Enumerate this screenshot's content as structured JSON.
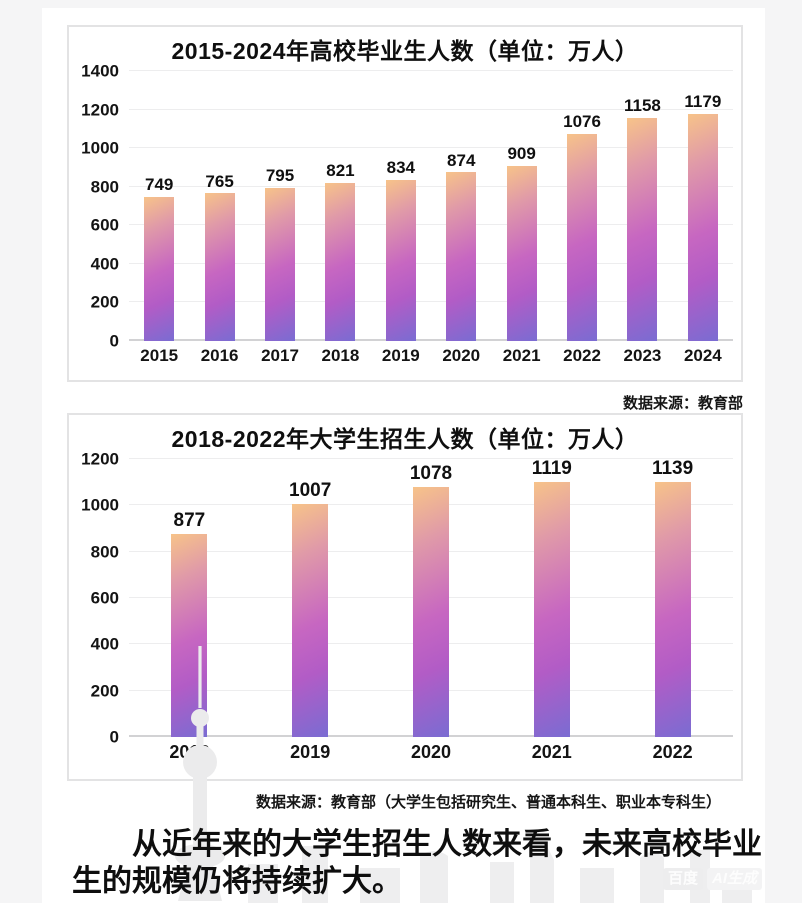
{
  "conclusion": "从近年来的大学生招生人数来看，未来高校毕业生的规模仍将持续扩大。",
  "watermark": {
    "brand": "百度",
    "label": "AI生成"
  },
  "colors": {
    "bar_gradient_top": "#f7c389",
    "bar_gradient_mid": "#c767c1",
    "bar_gradient_bottom": "#7a6cd2",
    "gridline": "#ededee",
    "axis_baseline": "#d2d2d4",
    "panel_border": "#e3e3e4",
    "page_background": "#f5f5f6",
    "text": "#111111"
  },
  "chart_data": [
    {
      "type": "bar",
      "title": "2015-2024年高校毕业生人数（单位：万人）",
      "categories": [
        "2015",
        "2016",
        "2017",
        "2018",
        "2019",
        "2020",
        "2021",
        "2022",
        "2023",
        "2024"
      ],
      "values": [
        749,
        765,
        795,
        821,
        834,
        874,
        909,
        1076,
        1158,
        1179
      ],
      "xlabel": "",
      "ylabel": "",
      "ylim": [
        0,
        1400
      ],
      "ytick_step": 200,
      "grid": true,
      "legend": "none",
      "source": "数据来源：教育部"
    },
    {
      "type": "bar",
      "title": "2018-2022年大学生招生人数（单位：万人）",
      "categories": [
        "2018",
        "2019",
        "2020",
        "2021",
        "2022"
      ],
      "values": [
        877,
        1007,
        1078,
        1119,
        1139
      ],
      "xlabel": "",
      "ylabel": "",
      "ylim": [
        0,
        1200
      ],
      "ytick_step": 200,
      "grid": true,
      "legend": "none",
      "source": "数据来源：教育部（大学生包括研究生、普通本科生、职业本专科生）"
    }
  ]
}
